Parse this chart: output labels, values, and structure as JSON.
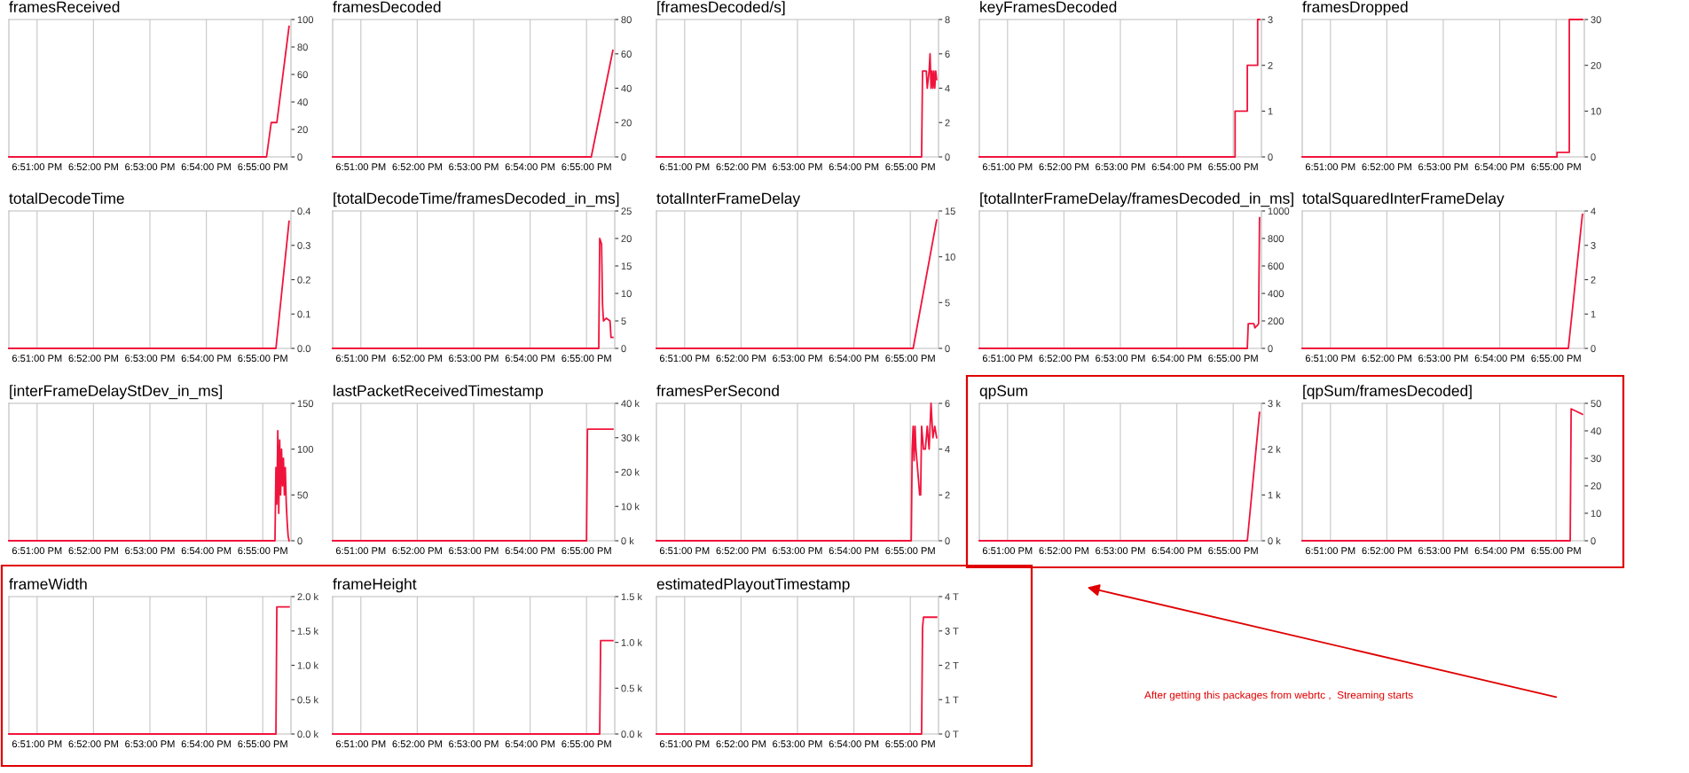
{
  "chart_data": [
    {
      "type": "line",
      "title": "framesReceived",
      "color": "#f0143c",
      "grid": "x",
      "xlim": [
        18.84167,
        18.925
      ],
      "xticks": [
        {
          "value": 18.85,
          "label": "6:51:00 PM"
        },
        {
          "value": 18.86667,
          "label": "6:52:00 PM"
        },
        {
          "value": 18.88333,
          "label": "6:53:00 PM"
        },
        {
          "value": 18.9,
          "label": "6:54:00 PM"
        },
        {
          "value": 18.91667,
          "label": "6:55:00 PM"
        }
      ],
      "ylim": [
        0,
        100
      ],
      "yticks": [
        0,
        20,
        40,
        60,
        80,
        100
      ],
      "x": [
        18.84167,
        18.91778,
        18.91917,
        18.92083,
        18.92444
      ],
      "values": [
        0,
        0,
        25,
        25,
        95
      ]
    },
    {
      "type": "line",
      "title": "framesDecoded",
      "color": "#f0143c",
      "grid": "x",
      "xlim": [
        18.84167,
        18.925
      ],
      "xticks": [
        {
          "value": 18.85,
          "label": "6:51:00 PM"
        },
        {
          "value": 18.86667,
          "label": "6:52:00 PM"
        },
        {
          "value": 18.88333,
          "label": "6:53:00 PM"
        },
        {
          "value": 18.9,
          "label": "6:54:00 PM"
        },
        {
          "value": 18.91667,
          "label": "6:55:00 PM"
        }
      ],
      "ylim": [
        0,
        80
      ],
      "yticks": [
        0,
        20,
        40,
        60,
        80
      ],
      "x": [
        18.84167,
        18.91806,
        18.92444
      ],
      "values": [
        0,
        0,
        62
      ]
    },
    {
      "type": "line",
      "title": "[framesDecoded/s]",
      "color": "#f0143c",
      "grid": "x",
      "xlim": [
        18.84167,
        18.925
      ],
      "xticks": [
        {
          "value": 18.85,
          "label": "6:51:00 PM"
        },
        {
          "value": 18.86667,
          "label": "6:52:00 PM"
        },
        {
          "value": 18.88333,
          "label": "6:53:00 PM"
        },
        {
          "value": 18.9,
          "label": "6:54:00 PM"
        },
        {
          "value": 18.91667,
          "label": "6:55:00 PM"
        }
      ],
      "ylim": [
        0,
        8
      ],
      "yticks": [
        0,
        2,
        4,
        6,
        8
      ],
      "x": [
        18.84167,
        18.92,
        18.92028,
        18.92139,
        18.92167,
        18.92222,
        18.9225,
        18.92278,
        18.92306,
        18.92333,
        18.92361,
        18.92389,
        18.92417,
        18.92444
      ],
      "values": [
        0,
        0,
        5,
        5,
        4,
        5,
        6,
        4,
        5,
        4,
        5,
        4,
        5,
        4.5
      ]
    },
    {
      "type": "step",
      "title": "keyFramesDecoded",
      "color": "#f0143c",
      "grid": "x",
      "xlim": [
        18.84167,
        18.925
      ],
      "xticks": [
        {
          "value": 18.85,
          "label": "6:51:00 PM"
        },
        {
          "value": 18.86667,
          "label": "6:52:00 PM"
        },
        {
          "value": 18.88333,
          "label": "6:53:00 PM"
        },
        {
          "value": 18.9,
          "label": "6:54:00 PM"
        },
        {
          "value": 18.91667,
          "label": "6:55:00 PM"
        }
      ],
      "ylim": [
        0,
        3
      ],
      "yticks": [
        0,
        1,
        2,
        3
      ],
      "x": [
        18.84167,
        18.91722,
        18.92083,
        18.92389,
        18.92444
      ],
      "values": [
        0,
        1,
        2,
        3,
        3
      ]
    },
    {
      "type": "step",
      "title": "framesDropped",
      "color": "#f0143c",
      "grid": "x",
      "xlim": [
        18.84167,
        18.925
      ],
      "xticks": [
        {
          "value": 18.85,
          "label": "6:51:00 PM"
        },
        {
          "value": 18.86667,
          "label": "6:52:00 PM"
        },
        {
          "value": 18.88333,
          "label": "6:53:00 PM"
        },
        {
          "value": 18.9,
          "label": "6:54:00 PM"
        },
        {
          "value": 18.91667,
          "label": "6:55:00 PM"
        }
      ],
      "ylim": [
        0,
        30
      ],
      "yticks": [
        0,
        10,
        20,
        30
      ],
      "x": [
        18.84167,
        18.91694,
        18.92056,
        18.92444
      ],
      "values": [
        0,
        1,
        30,
        30
      ]
    },
    {
      "type": "line",
      "title": "totalDecodeTime",
      "color": "#f0143c",
      "grid": "x",
      "xlim": [
        18.84167,
        18.925
      ],
      "xticks": [
        {
          "value": 18.85,
          "label": "6:51:00 PM"
        },
        {
          "value": 18.86667,
          "label": "6:52:00 PM"
        },
        {
          "value": 18.88333,
          "label": "6:53:00 PM"
        },
        {
          "value": 18.9,
          "label": "6:54:00 PM"
        },
        {
          "value": 18.91667,
          "label": "6:55:00 PM"
        }
      ],
      "ylim": [
        0,
        0.4
      ],
      "yticks": [
        {
          "value": 0,
          "label": "0.0"
        },
        0.1,
        0.2,
        0.3,
        0.4
      ],
      "x": [
        18.84167,
        18.92056,
        18.92444
      ],
      "values": [
        0,
        0,
        0.37
      ]
    },
    {
      "type": "line",
      "title": "[totalDecodeTime/framesDecoded_in_ms]",
      "color": "#f0143c",
      "grid": "x",
      "xlim": [
        18.84167,
        18.925
      ],
      "xticks": [
        {
          "value": 18.85,
          "label": "6:51:00 PM"
        },
        {
          "value": 18.86667,
          "label": "6:52:00 PM"
        },
        {
          "value": 18.88333,
          "label": "6:53:00 PM"
        },
        {
          "value": 18.9,
          "label": "6:54:00 PM"
        },
        {
          "value": 18.91667,
          "label": "6:55:00 PM"
        }
      ],
      "ylim": [
        0,
        25
      ],
      "yticks": [
        0,
        5,
        10,
        15,
        20,
        25
      ],
      "x": [
        18.84167,
        18.92028,
        18.92056,
        18.92111,
        18.92139,
        18.92167,
        18.9225,
        18.92361,
        18.92389,
        18.92444
      ],
      "values": [
        0,
        0,
        20,
        19,
        8,
        5,
        5.5,
        5,
        2,
        2
      ]
    },
    {
      "type": "line",
      "title": "totalInterFrameDelay",
      "color": "#f0143c",
      "grid": "x",
      "xlim": [
        18.84167,
        18.925
      ],
      "xticks": [
        {
          "value": 18.85,
          "label": "6:51:00 PM"
        },
        {
          "value": 18.86667,
          "label": "6:52:00 PM"
        },
        {
          "value": 18.88333,
          "label": "6:53:00 PM"
        },
        {
          "value": 18.9,
          "label": "6:54:00 PM"
        },
        {
          "value": 18.91667,
          "label": "6:55:00 PM"
        }
      ],
      "ylim": [
        0,
        15
      ],
      "yticks": [
        0,
        5,
        10,
        15
      ],
      "x": [
        18.84167,
        18.9175,
        18.92444
      ],
      "values": [
        0,
        0,
        14
      ]
    },
    {
      "type": "line",
      "title": "[totalInterFrameDelay/framesDecoded_in_ms]",
      "color": "#f0143c",
      "grid": "x",
      "xlim": [
        18.84167,
        18.925
      ],
      "xticks": [
        {
          "value": 18.85,
          "label": "6:51:00 PM"
        },
        {
          "value": 18.86667,
          "label": "6:52:00 PM"
        },
        {
          "value": 18.88333,
          "label": "6:53:00 PM"
        },
        {
          "value": 18.9,
          "label": "6:54:00 PM"
        },
        {
          "value": 18.91667,
          "label": "6:55:00 PM"
        }
      ],
      "ylim": [
        0,
        1000
      ],
      "yticks": [
        0,
        200,
        400,
        600,
        800,
        1000
      ],
      "x": [
        18.84167,
        18.92083,
        18.92111,
        18.92278,
        18.92306,
        18.92389,
        18.92417,
        18.92444
      ],
      "values": [
        0,
        0,
        180,
        180,
        150,
        170,
        180,
        950
      ]
    },
    {
      "type": "line",
      "title": "totalSquaredInterFrameDelay",
      "color": "#f0143c",
      "grid": "x",
      "xlim": [
        18.84167,
        18.925
      ],
      "xticks": [
        {
          "value": 18.85,
          "label": "6:51:00 PM"
        },
        {
          "value": 18.86667,
          "label": "6:52:00 PM"
        },
        {
          "value": 18.88333,
          "label": "6:53:00 PM"
        },
        {
          "value": 18.9,
          "label": "6:54:00 PM"
        },
        {
          "value": 18.91667,
          "label": "6:55:00 PM"
        }
      ],
      "ylim": [
        0,
        4
      ],
      "yticks": [
        0,
        1,
        2,
        3,
        4
      ],
      "x": [
        18.84167,
        18.92028,
        18.92444
      ],
      "values": [
        0,
        0,
        3.9
      ]
    },
    {
      "type": "line",
      "title": "[interFrameDelayStDev_in_ms]",
      "color": "#f0143c",
      "grid": "x",
      "xlim": [
        18.84167,
        18.925
      ],
      "xticks": [
        {
          "value": 18.85,
          "label": "6:51:00 PM"
        },
        {
          "value": 18.86667,
          "label": "6:52:00 PM"
        },
        {
          "value": 18.88333,
          "label": "6:53:00 PM"
        },
        {
          "value": 18.9,
          "label": "6:54:00 PM"
        },
        {
          "value": 18.91667,
          "label": "6:55:00 PM"
        }
      ],
      "ylim": [
        0,
        150
      ],
      "yticks": [
        0,
        50,
        100,
        150
      ],
      "x": [
        18.84167,
        18.92028,
        18.92056,
        18.92083,
        18.92111,
        18.92139,
        18.92167,
        18.92194,
        18.92222,
        18.9225,
        18.92278,
        18.92306,
        18.92333,
        18.92361,
        18.92389,
        18.92417,
        18.92444
      ],
      "values": [
        0,
        0,
        80,
        40,
        120,
        30,
        110,
        50,
        100,
        60,
        90,
        50,
        80,
        40,
        20,
        5,
        0
      ]
    },
    {
      "type": "line",
      "title": "lastPacketReceivedTimestamp",
      "color": "#f0143c",
      "grid": "x",
      "xlim": [
        18.84167,
        18.925
      ],
      "xticks": [
        {
          "value": 18.85,
          "label": "6:51:00 PM"
        },
        {
          "value": 18.86667,
          "label": "6:52:00 PM"
        },
        {
          "value": 18.88333,
          "label": "6:53:00 PM"
        },
        {
          "value": 18.9,
          "label": "6:54:00 PM"
        },
        {
          "value": 18.91667,
          "label": "6:55:00 PM"
        }
      ],
      "ylim": [
        0,
        40
      ],
      "yticks": [
        {
          "value": 0,
          "label": "0 k"
        },
        {
          "value": 10,
          "label": "10 k"
        },
        {
          "value": 20,
          "label": "20 k"
        },
        {
          "value": 30,
          "label": "30 k"
        },
        {
          "value": 40,
          "label": "40 k"
        }
      ],
      "x": [
        18.84167,
        18.91667,
        18.91694,
        18.92444
      ],
      "values": [
        0,
        0,
        32.5,
        32.5
      ]
    },
    {
      "type": "line",
      "title": "framesPerSecond",
      "color": "#f0143c",
      "grid": "x",
      "xlim": [
        18.84167,
        18.925
      ],
      "xticks": [
        {
          "value": 18.85,
          "label": "6:51:00 PM"
        },
        {
          "value": 18.86667,
          "label": "6:52:00 PM"
        },
        {
          "value": 18.88333,
          "label": "6:53:00 PM"
        },
        {
          "value": 18.9,
          "label": "6:54:00 PM"
        },
        {
          "value": 18.91667,
          "label": "6:55:00 PM"
        }
      ],
      "ylim": [
        0,
        6
      ],
      "yticks": [
        0,
        2,
        4,
        6
      ],
      "x": [
        18.84167,
        18.91694,
        18.91722,
        18.9175,
        18.91778,
        18.91806,
        18.91833,
        18.91889,
        18.91944,
        18.91972,
        18.92,
        18.92056,
        18.92111,
        18.92167,
        18.92222,
        18.92278,
        18.92333,
        18.92389,
        18.92444
      ],
      "values": [
        0,
        0,
        4,
        5,
        3.5,
        5,
        4,
        3,
        2,
        2,
        5,
        4,
        4,
        5,
        4,
        6,
        4.5,
        5,
        4.5
      ]
    },
    {
      "type": "line",
      "title": "qpSum",
      "color": "#f0143c",
      "grid": "x",
      "xlim": [
        18.84167,
        18.925
      ],
      "xticks": [
        {
          "value": 18.85,
          "label": "6:51:00 PM"
        },
        {
          "value": 18.86667,
          "label": "6:52:00 PM"
        },
        {
          "value": 18.88333,
          "label": "6:53:00 PM"
        },
        {
          "value": 18.9,
          "label": "6:54:00 PM"
        },
        {
          "value": 18.91667,
          "label": "6:55:00 PM"
        }
      ],
      "ylim": [
        0,
        3
      ],
      "yticks": [
        {
          "value": 0,
          "label": "0 k"
        },
        {
          "value": 1,
          "label": "1 k"
        },
        {
          "value": 2,
          "label": "2 k"
        },
        {
          "value": 3,
          "label": "3 k"
        }
      ],
      "x": [
        18.84167,
        18.92083,
        18.92444
      ],
      "values": [
        0,
        0,
        2.8
      ]
    },
    {
      "type": "line",
      "title": "[qpSum/framesDecoded]",
      "color": "#f0143c",
      "grid": "x",
      "xlim": [
        18.84167,
        18.925
      ],
      "xticks": [
        {
          "value": 18.85,
          "label": "6:51:00 PM"
        },
        {
          "value": 18.86667,
          "label": "6:52:00 PM"
        },
        {
          "value": 18.88333,
          "label": "6:53:00 PM"
        },
        {
          "value": 18.9,
          "label": "6:54:00 PM"
        },
        {
          "value": 18.91667,
          "label": "6:55:00 PM"
        }
      ],
      "ylim": [
        0,
        50
      ],
      "yticks": [
        0,
        10,
        20,
        30,
        40,
        50
      ],
      "x": [
        18.84167,
        18.92083,
        18.92111,
        18.92278,
        18.92444
      ],
      "values": [
        0,
        0,
        48,
        47,
        46
      ]
    },
    {
      "type": "line",
      "title": "frameWidth",
      "color": "#f0143c",
      "grid": "x",
      "xlim": [
        18.84167,
        18.925
      ],
      "xticks": [
        {
          "value": 18.85,
          "label": "6:51:00 PM"
        },
        {
          "value": 18.86667,
          "label": "6:52:00 PM"
        },
        {
          "value": 18.88333,
          "label": "6:53:00 PM"
        },
        {
          "value": 18.9,
          "label": "6:54:00 PM"
        },
        {
          "value": 18.91667,
          "label": "6:55:00 PM"
        }
      ],
      "ylim": [
        0,
        2
      ],
      "yticks": [
        {
          "value": 0,
          "label": "0.0 k"
        },
        {
          "value": 0.5,
          "label": "0.5 k"
        },
        {
          "value": 1,
          "label": "1.0 k"
        },
        {
          "value": 1.5,
          "label": "1.5 k"
        },
        {
          "value": 2,
          "label": "2.0 k"
        }
      ],
      "x": [
        18.84167,
        18.92056,
        18.92083,
        18.92444
      ],
      "values": [
        0,
        0,
        1.85,
        1.85
      ]
    },
    {
      "type": "line",
      "title": "frameHeight",
      "color": "#f0143c",
      "grid": "x",
      "xlim": [
        18.84167,
        18.925
      ],
      "xticks": [
        {
          "value": 18.85,
          "label": "6:51:00 PM"
        },
        {
          "value": 18.86667,
          "label": "6:52:00 PM"
        },
        {
          "value": 18.88333,
          "label": "6:53:00 PM"
        },
        {
          "value": 18.9,
          "label": "6:54:00 PM"
        },
        {
          "value": 18.91667,
          "label": "6:55:00 PM"
        }
      ],
      "ylim": [
        0,
        1.5
      ],
      "yticks": [
        {
          "value": 0,
          "label": "0.0 k"
        },
        {
          "value": 0.5,
          "label": "0.5 k"
        },
        {
          "value": 1,
          "label": "1.0 k"
        },
        {
          "value": 1.5,
          "label": "1.5 k"
        }
      ],
      "x": [
        18.84167,
        18.92056,
        18.92083,
        18.92444
      ],
      "values": [
        0,
        0,
        1.02,
        1.02
      ]
    },
    {
      "type": "line",
      "title": "estimatedPlayoutTimestamp",
      "color": "#f0143c",
      "grid": "x",
      "xlim": [
        18.84167,
        18.925
      ],
      "xticks": [
        {
          "value": 18.85,
          "label": "6:51:00 PM"
        },
        {
          "value": 18.86667,
          "label": "6:52:00 PM"
        },
        {
          "value": 18.88333,
          "label": "6:53:00 PM"
        },
        {
          "value": 18.9,
          "label": "6:54:00 PM"
        },
        {
          "value": 18.91667,
          "label": "6:55:00 PM"
        }
      ],
      "ylim": [
        0,
        4
      ],
      "yticks": [
        {
          "value": 0,
          "label": "0 T"
        },
        {
          "value": 1,
          "label": "1 T"
        },
        {
          "value": 2,
          "label": "2 T"
        },
        {
          "value": 3,
          "label": "3 T"
        },
        {
          "value": 4,
          "label": "4 T"
        }
      ],
      "x": [
        18.84167,
        18.92,
        18.92028,
        18.92056,
        18.92444
      ],
      "values": [
        0,
        0,
        3.1,
        3.4,
        3.4
      ],
      "annotations": [
        "After getting this packages from webrtc ,  Streaming starts"
      ]
    }
  ]
}
